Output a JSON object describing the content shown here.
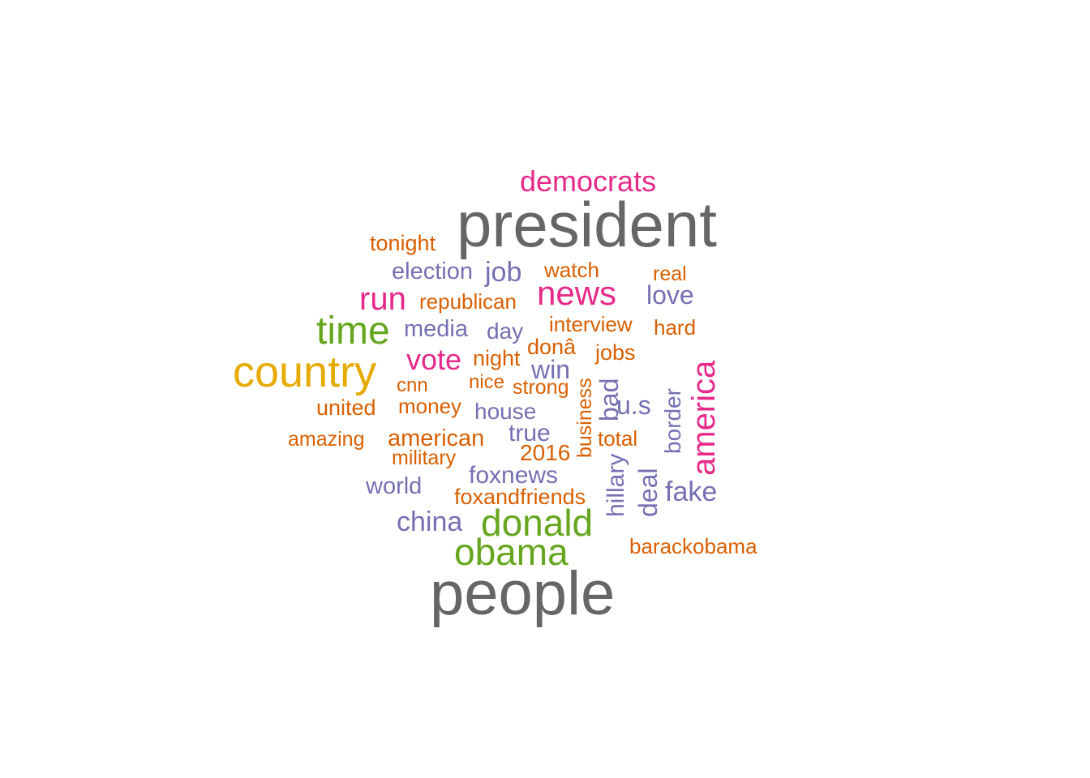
{
  "words": {
    "president": "president",
    "people": "people",
    "country": "country",
    "time": "time",
    "donald": "donald",
    "obama": "obama",
    "democrats": "democrats",
    "news": "news",
    "run": "run",
    "vote": "vote",
    "america": "america",
    "china": "china",
    "love": "love",
    "fake": "fake",
    "job": "job",
    "election": "election",
    "media": "media",
    "day": "day",
    "win": "win",
    "bad": "bad",
    "us": "u.s",
    "house": "house",
    "true": "true",
    "foxnews": "foxnews",
    "world": "world",
    "border": "border",
    "hillary": "hillary",
    "deal": "deal",
    "tonight": "tonight",
    "watch": "watch",
    "real": "real",
    "republican": "republican",
    "interview": "interview",
    "hard": "hard",
    "night": "night",
    "dona": "donâ",
    "jobs": "jobs",
    "cnn": "cnn",
    "nice": "nice",
    "strong": "strong",
    "united": "united",
    "money": "money",
    "amazing": "amazing",
    "american": "american",
    "business": "business",
    "total": "total",
    "2016": "2016",
    "military": "military",
    "foxandfriends": "foxandfriends",
    "barackobama": "barackobama"
  },
  "palette": {
    "gray": "#666666",
    "gold": "#e6ab02",
    "green": "#66a61e",
    "magenta": "#e7298a",
    "purple": "#7570b3",
    "orange": "#d95f02"
  }
}
